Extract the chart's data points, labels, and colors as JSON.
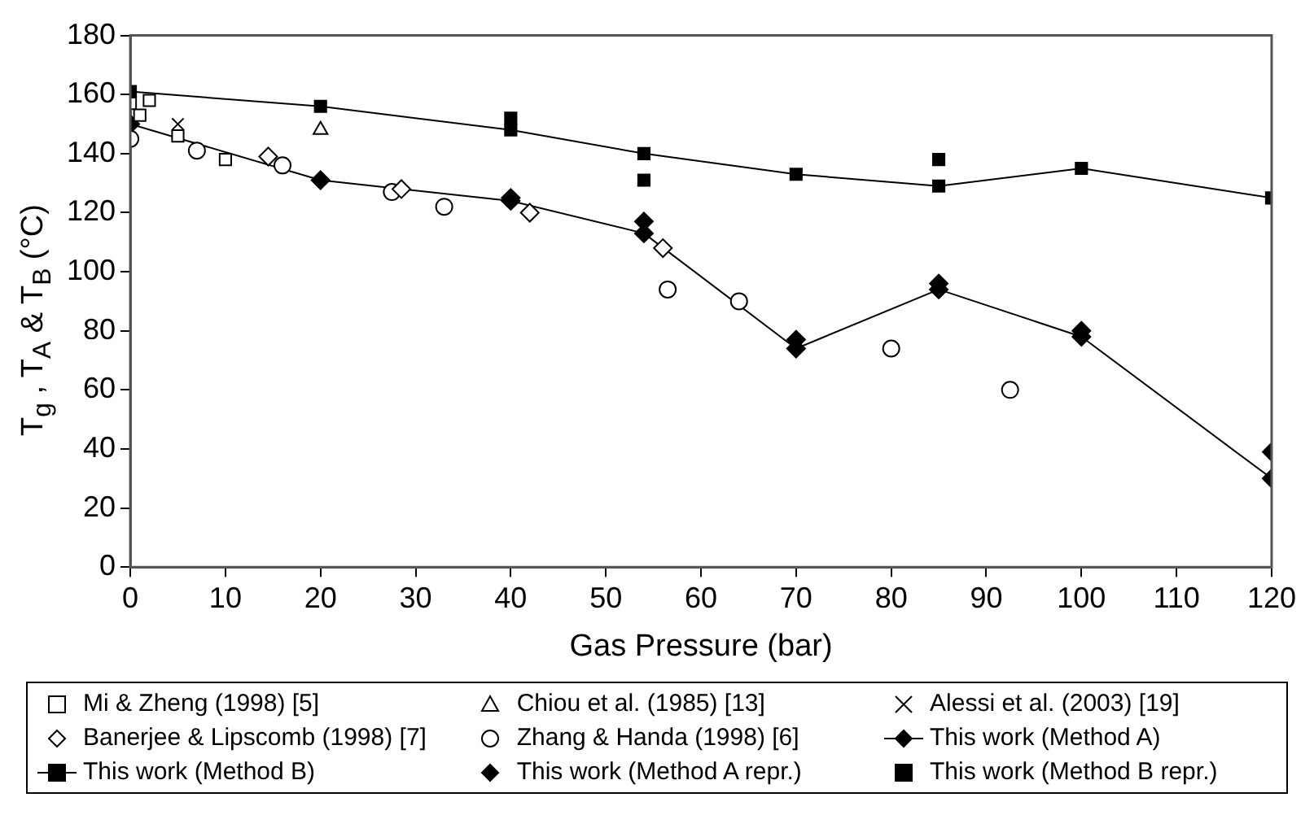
{
  "chart_data": {
    "type": "scatter",
    "xlabel": "Gas Pressure (bar)",
    "ylabel": "T$_{g}$ , T$_{A}$ & T$_{B}$ (°C)",
    "xlim": [
      0,
      120
    ],
    "xticks": [
      0,
      10,
      20,
      30,
      40,
      50,
      60,
      70,
      80,
      90,
      100,
      110,
      120
    ],
    "ylim": [
      0,
      180
    ],
    "yticks": [
      0,
      20,
      40,
      60,
      80,
      100,
      120,
      140,
      160,
      180
    ],
    "grid": false,
    "legend": "bottom",
    "series": [
      {
        "name": "Mi & Zheng (1998) [5]",
        "type": "scatter",
        "marker": "square",
        "color": "#ffffff",
        "x": [
          0,
          1,
          2,
          5,
          10
        ],
        "values": [
          157,
          153,
          158,
          146,
          138
        ]
      },
      {
        "name": "Chiou et al. (1985) [13]",
        "type": "scatter",
        "marker": "triangle",
        "color": "#ffffff",
        "x": [
          20
        ],
        "values": [
          148
        ]
      },
      {
        "name": "Alessi et al. (2003) [19]",
        "type": "scatter",
        "marker": "cross",
        "color": "#000000",
        "x": [
          5
        ],
        "values": [
          150
        ]
      },
      {
        "name": "Banerjee & Lipscomb (1998) [7]",
        "type": "scatter",
        "marker": "diamond",
        "color": "#ffffff",
        "x": [
          14.5,
          28.5,
          42,
          56
        ],
        "values": [
          139,
          128,
          120,
          108
        ]
      },
      {
        "name": "Zhang & Handa (1998) [6]",
        "type": "scatter",
        "marker": "circle",
        "color": "#ffffff",
        "x": [
          0,
          7,
          16,
          27.5,
          33,
          56.5,
          64,
          80,
          92.5
        ],
        "values": [
          145,
          141,
          136,
          127,
          122,
          94,
          90,
          74,
          60
        ]
      },
      {
        "name": "This work (Method A)",
        "type": "line",
        "marker": "diamond",
        "color": "#000000",
        "x": [
          0,
          20,
          40,
          54,
          70,
          85,
          100,
          120
        ],
        "values": [
          150,
          131,
          124,
          113,
          74,
          94,
          78,
          30
        ]
      },
      {
        "name": "This work (Method B)",
        "type": "line",
        "marker": "square",
        "color": "#000000",
        "x": [
          0,
          20,
          40,
          54,
          70,
          85,
          100,
          120
        ],
        "values": [
          161,
          156,
          148,
          140,
          133,
          129,
          135,
          125
        ]
      },
      {
        "name": "This work (Method A repr.)",
        "type": "scatter",
        "marker": "diamond",
        "color": "#000000",
        "x": [
          40,
          54,
          70,
          85,
          100,
          120
        ],
        "values": [
          125,
          117,
          77,
          96,
          80,
          39
        ]
      },
      {
        "name": "This work (Method B repr.)",
        "type": "scatter",
        "marker": "square",
        "color": "#000000",
        "x": [
          40,
          54,
          85
        ],
        "values": [
          152,
          131,
          138
        ]
      }
    ]
  }
}
